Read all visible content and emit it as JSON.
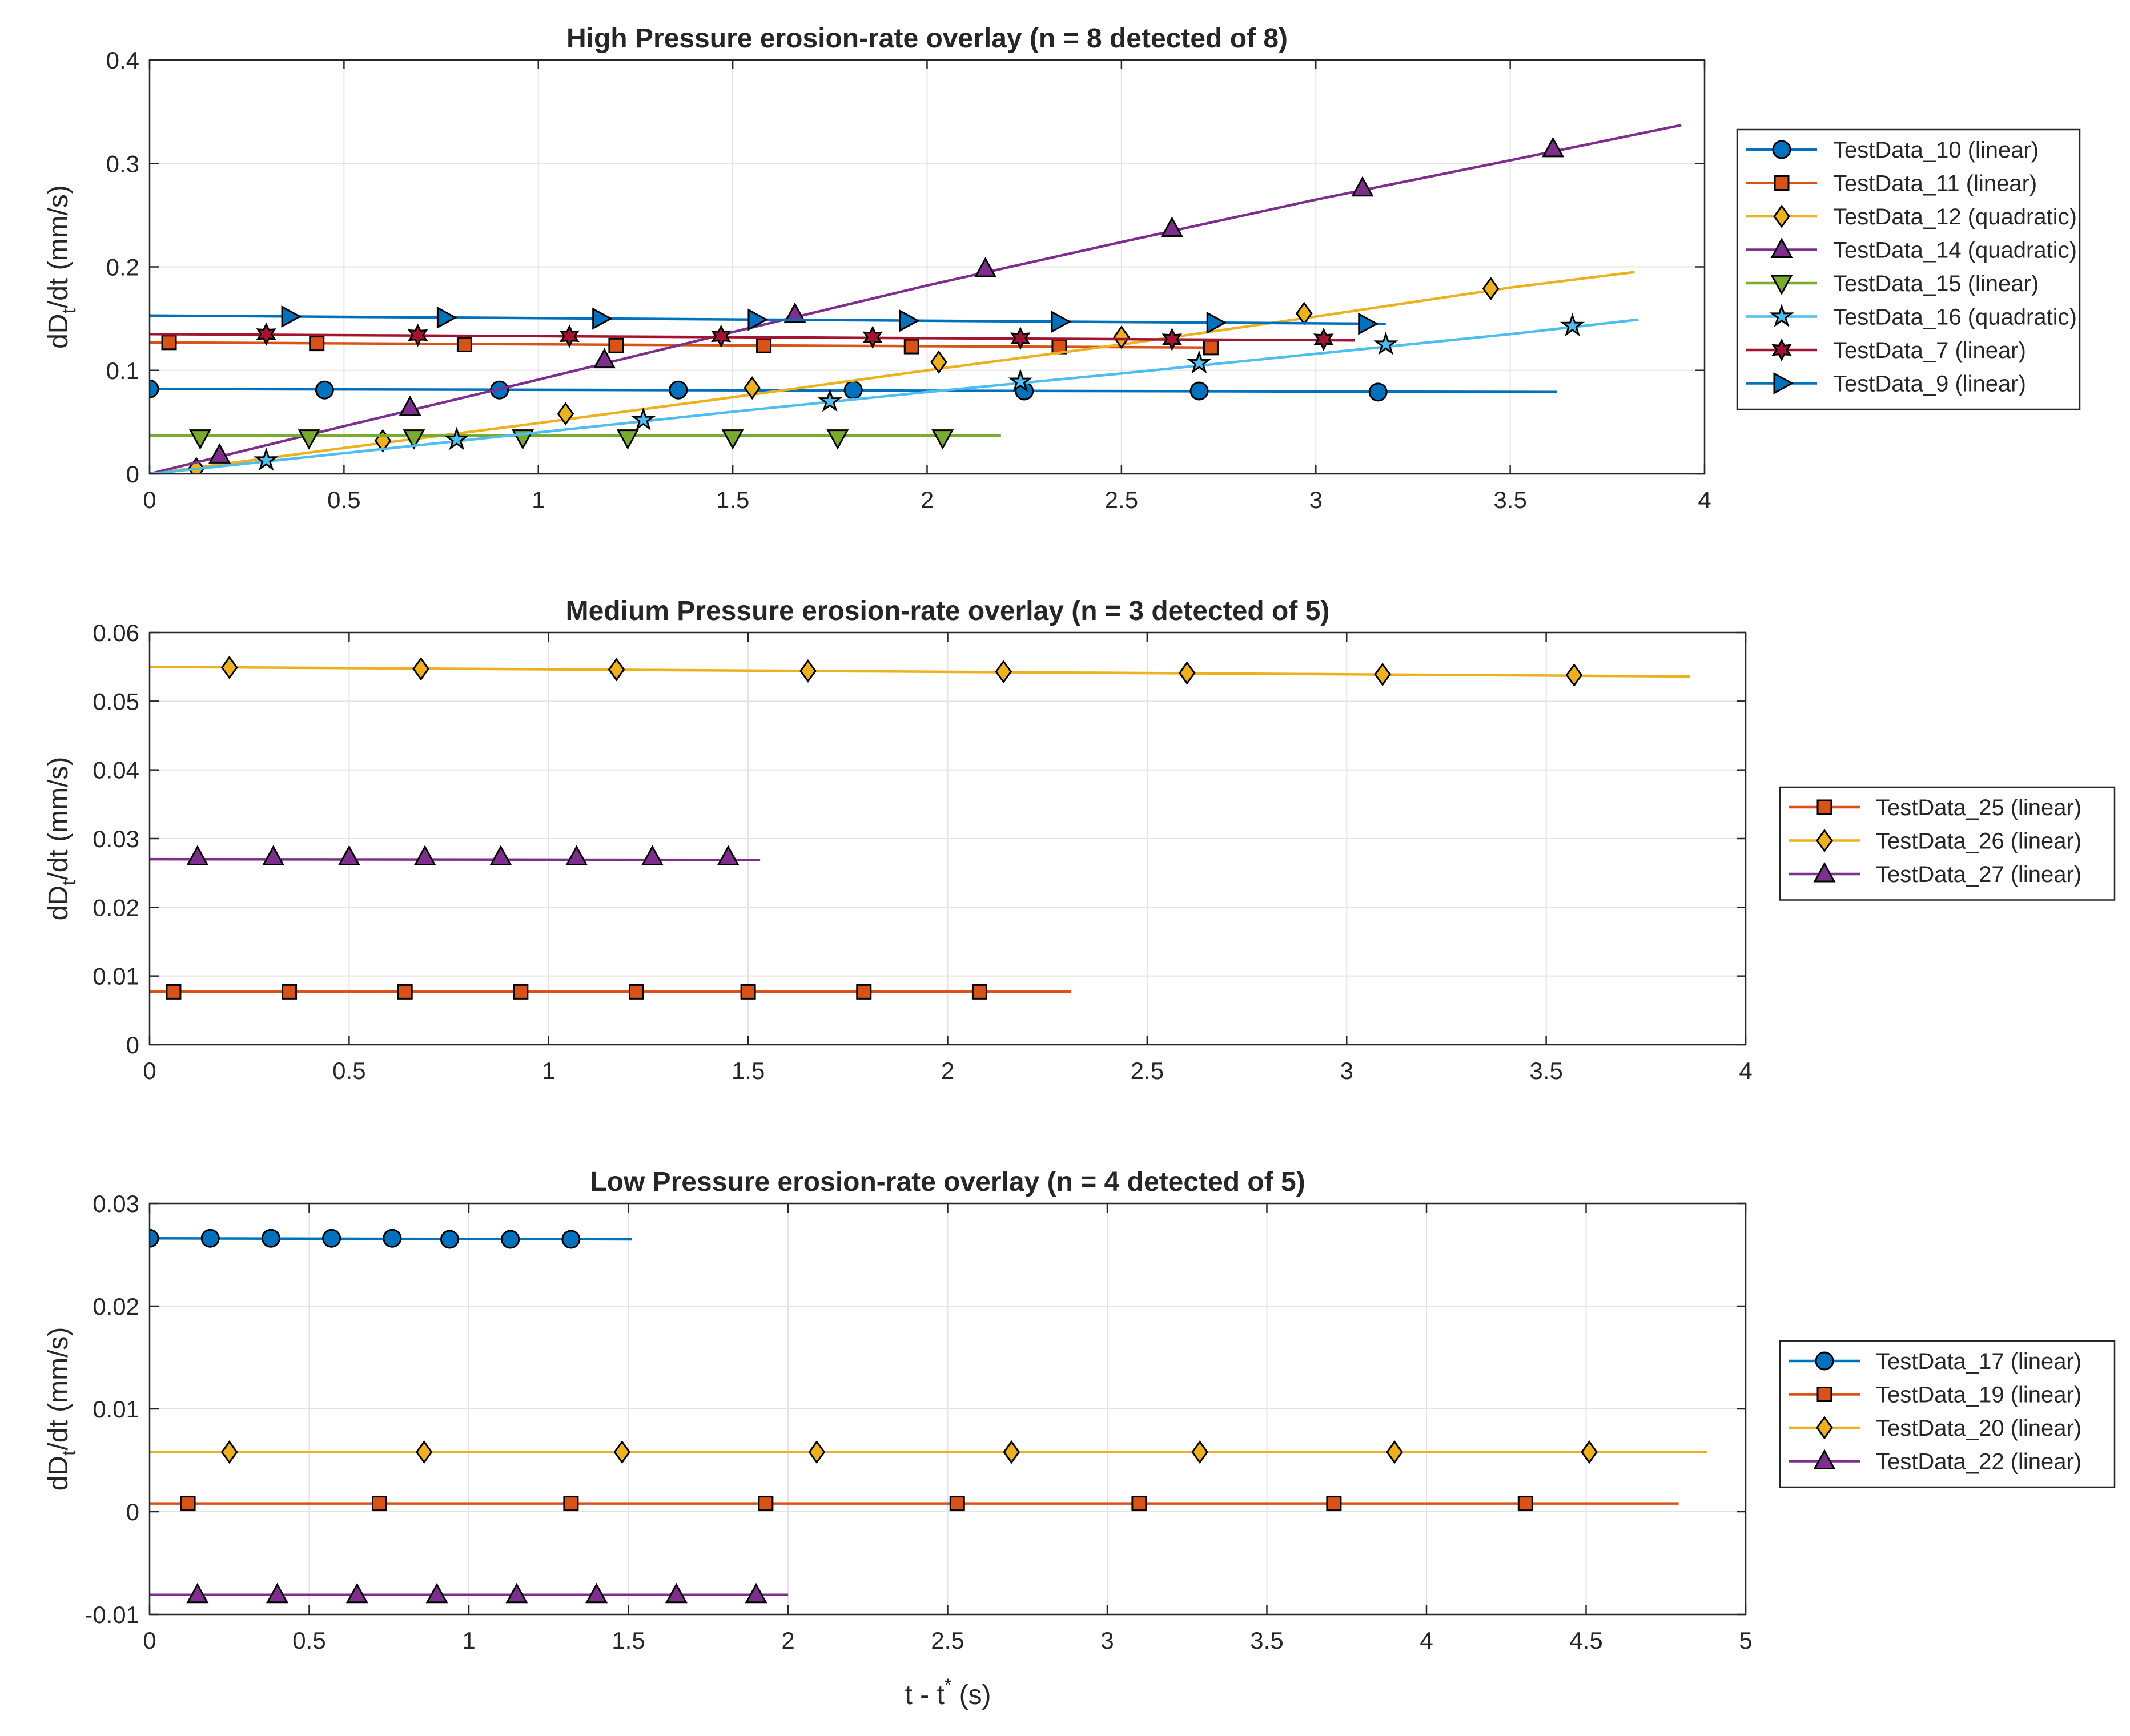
{
  "figure": {
    "xlabel_main": "t - t",
    "xlabel_sup": "*",
    "xlabel_unit": " (s)"
  },
  "chart_data": [
    {
      "type": "line",
      "title": "High Pressure erosion-rate overlay (n = 8 detected of 8)",
      "ylabel_main": "dD",
      "ylabel_sub": "t",
      "ylabel_rest": "/dt (mm/s)",
      "xlim": [
        0,
        4
      ],
      "ylim": [
        0,
        0.4
      ],
      "xticks": [
        0,
        0.5,
        1,
        1.5,
        2,
        2.5,
        3,
        3.5,
        4
      ],
      "xtick_labels": [
        "0",
        "0.5",
        "1",
        "1.5",
        "2",
        "2.5",
        "3",
        "3.5",
        "4"
      ],
      "yticks": [
        0,
        0.1,
        0.2,
        0.3,
        0.4
      ],
      "ytick_labels": [
        "0",
        "0.1",
        "0.2",
        "0.3",
        "0.4"
      ],
      "grid": true,
      "legend_position": "outside-right",
      "series": [
        {
          "name": "TestData_10 (linear)",
          "color": "#0072BD",
          "marker": "circle",
          "line_x": [
            0,
            3.62
          ],
          "line_y": [
            0.082,
            0.079
          ],
          "points": [
            [
              0,
              0.082
            ],
            [
              0.45,
              0.081
            ],
            [
              0.9,
              0.081
            ],
            [
              1.36,
              0.081
            ],
            [
              1.81,
              0.081
            ],
            [
              2.25,
              0.08
            ],
            [
              2.7,
              0.08
            ],
            [
              3.16,
              0.079
            ]
          ]
        },
        {
          "name": "TestData_11 (linear)",
          "color": "#D95319",
          "marker": "square",
          "line_x": [
            0,
            2.75
          ],
          "line_y": [
            0.127,
            0.122
          ],
          "points": [
            [
              0.05,
              0.127
            ],
            [
              0.43,
              0.126
            ],
            [
              0.81,
              0.125
            ],
            [
              1.2,
              0.124
            ],
            [
              1.58,
              0.124
            ],
            [
              1.96,
              0.123
            ],
            [
              2.34,
              0.123
            ],
            [
              2.73,
              0.122
            ]
          ]
        },
        {
          "name": "TestData_12 (quadratic)",
          "color": "#EDB120",
          "marker": "diamond",
          "line_x": [
            0,
            0.5,
            1,
            1.5,
            2,
            2.5,
            3,
            3.5,
            3.82
          ],
          "line_y": [
            0,
            0.025,
            0.049,
            0.074,
            0.1,
            0.125,
            0.152,
            0.18,
            0.195
          ],
          "points": [
            [
              0.12,
              0.005
            ],
            [
              0.6,
              0.032
            ],
            [
              1.07,
              0.058
            ],
            [
              1.55,
              0.083
            ],
            [
              2.03,
              0.108
            ],
            [
              2.5,
              0.132
            ],
            [
              2.97,
              0.155
            ],
            [
              3.45,
              0.179
            ]
          ]
        },
        {
          "name": "TestData_14 (quadratic)",
          "color": "#7E2F8E",
          "marker": "triangle-up",
          "line_x": [
            0,
            0.5,
            1,
            1.5,
            2,
            2.5,
            3,
            3.5,
            3.94
          ],
          "line_y": [
            0,
            0.046,
            0.091,
            0.137,
            0.182,
            0.224,
            0.265,
            0.303,
            0.337
          ],
          "points": [
            [
              0.18,
              0.018
            ],
            [
              0.67,
              0.064
            ],
            [
              1.17,
              0.11
            ],
            [
              1.66,
              0.154
            ],
            [
              2.15,
              0.198
            ],
            [
              2.63,
              0.237
            ],
            [
              3.12,
              0.276
            ],
            [
              3.61,
              0.314
            ]
          ]
        },
        {
          "name": "TestData_15 (linear)",
          "color": "#77AC30",
          "marker": "triangle-down",
          "line_x": [
            0,
            2.19
          ],
          "line_y": [
            0.037,
            0.037
          ],
          "points": [
            [
              0.13,
              0.035
            ],
            [
              0.41,
              0.035
            ],
            [
              0.68,
              0.035
            ],
            [
              0.96,
              0.035
            ],
            [
              1.23,
              0.035
            ],
            [
              1.5,
              0.035
            ],
            [
              1.77,
              0.035
            ],
            [
              2.04,
              0.035
            ]
          ]
        },
        {
          "name": "TestData_16 (quadratic)",
          "color": "#4DBEEE",
          "marker": "star",
          "line_x": [
            0,
            0.5,
            1,
            1.5,
            2,
            2.5,
            3,
            3.5,
            3.83
          ],
          "line_y": [
            0,
            0.02,
            0.04,
            0.06,
            0.079,
            0.097,
            0.116,
            0.135,
            0.149
          ],
          "points": [
            [
              0.3,
              0.013
            ],
            [
              0.79,
              0.033
            ],
            [
              1.27,
              0.052
            ],
            [
              1.75,
              0.07
            ],
            [
              2.24,
              0.089
            ],
            [
              2.7,
              0.107
            ],
            [
              3.18,
              0.125
            ],
            [
              3.66,
              0.143
            ]
          ]
        },
        {
          "name": "TestData_7 (linear)",
          "color": "#A2142F",
          "marker": "hexagram",
          "line_x": [
            0,
            3.1
          ],
          "line_y": [
            0.135,
            0.129
          ],
          "points": [
            [
              0.3,
              0.135
            ],
            [
              0.69,
              0.134
            ],
            [
              1.08,
              0.133
            ],
            [
              1.47,
              0.133
            ],
            [
              1.86,
              0.132
            ],
            [
              2.24,
              0.131
            ],
            [
              2.63,
              0.13
            ],
            [
              3.02,
              0.13
            ]
          ]
        },
        {
          "name": "TestData_9 (linear)",
          "color": "#0072BD",
          "marker": "triangle-right",
          "line_x": [
            0,
            3.18
          ],
          "line_y": [
            0.153,
            0.145
          ],
          "points": [
            [
              0.36,
              0.152
            ],
            [
              0.76,
              0.151
            ],
            [
              1.16,
              0.15
            ],
            [
              1.56,
              0.149
            ],
            [
              1.95,
              0.148
            ],
            [
              2.34,
              0.147
            ],
            [
              2.74,
              0.146
            ],
            [
              3.13,
              0.145
            ]
          ]
        }
      ]
    },
    {
      "type": "line",
      "title": "Medium Pressure erosion-rate overlay (n = 3 detected of 5)",
      "ylabel_main": "dD",
      "ylabel_sub": "t",
      "ylabel_rest": "/dt (mm/s)",
      "xlim": [
        0,
        4
      ],
      "ylim": [
        0,
        0.06
      ],
      "xticks": [
        0,
        0.5,
        1,
        1.5,
        2,
        2.5,
        3,
        3.5,
        4
      ],
      "xtick_labels": [
        "0",
        "0.5",
        "1",
        "1.5",
        "2",
        "2.5",
        "3",
        "3.5",
        "4"
      ],
      "yticks": [
        0,
        0.01,
        0.02,
        0.03,
        0.04,
        0.05,
        0.06
      ],
      "ytick_labels": [
        "0",
        "0.01",
        "0.02",
        "0.03",
        "0.04",
        "0.05",
        "0.06"
      ],
      "grid": true,
      "legend_position": "outside-right",
      "series": [
        {
          "name": "TestData_25 (linear)",
          "color": "#D95319",
          "marker": "square",
          "line_x": [
            0,
            2.31
          ],
          "line_y": [
            0.0077,
            0.0077
          ],
          "points": [
            [
              0.06,
              0.0077
            ],
            [
              0.35,
              0.0077
            ],
            [
              0.64,
              0.0077
            ],
            [
              0.93,
              0.0077
            ],
            [
              1.22,
              0.0077
            ],
            [
              1.5,
              0.0077
            ],
            [
              1.79,
              0.0077
            ],
            [
              2.08,
              0.0077
            ]
          ]
        },
        {
          "name": "TestData_26 (linear)",
          "color": "#EDB120",
          "marker": "diamond",
          "line_x": [
            0,
            3.86
          ],
          "line_y": [
            0.055,
            0.0536
          ],
          "points": [
            [
              0.2,
              0.0549
            ],
            [
              0.68,
              0.0547
            ],
            [
              1.17,
              0.0546
            ],
            [
              1.65,
              0.0544
            ],
            [
              2.14,
              0.0543
            ],
            [
              2.6,
              0.0541
            ],
            [
              3.09,
              0.0539
            ],
            [
              3.57,
              0.0538
            ]
          ]
        },
        {
          "name": "TestData_27 (linear)",
          "color": "#7E2F8E",
          "marker": "triangle-up",
          "line_x": [
            0,
            1.53
          ],
          "line_y": [
            0.027,
            0.0269
          ],
          "points": [
            [
              0.12,
              0.0273
            ],
            [
              0.31,
              0.0273
            ],
            [
              0.5,
              0.0273
            ],
            [
              0.69,
              0.0273
            ],
            [
              0.88,
              0.0273
            ],
            [
              1.07,
              0.0273
            ],
            [
              1.26,
              0.0273
            ],
            [
              1.45,
              0.0273
            ]
          ]
        }
      ]
    },
    {
      "type": "line",
      "title": "Low Pressure erosion-rate overlay (n = 4 detected of 5)",
      "ylabel_main": "dD",
      "ylabel_sub": "t",
      "ylabel_rest": "/dt (mm/s)",
      "xlim": [
        0,
        5
      ],
      "ylim": [
        -0.01,
        0.03
      ],
      "xticks": [
        0,
        0.5,
        1,
        1.5,
        2,
        2.5,
        3,
        3.5,
        4,
        4.5,
        5
      ],
      "xtick_labels": [
        "0",
        "0.5",
        "1",
        "1.5",
        "2",
        "2.5",
        "3",
        "3.5",
        "4",
        "4.5",
        "5"
      ],
      "yticks": [
        -0.01,
        0,
        0.01,
        0.02,
        0.03
      ],
      "ytick_labels": [
        "-0.01",
        "0",
        "0.01",
        "0.02",
        "0.03"
      ],
      "grid": true,
      "legend_position": "outside-right",
      "series": [
        {
          "name": "TestData_17 (linear)",
          "color": "#0072BD",
          "marker": "circle",
          "line_x": [
            0,
            1.51
          ],
          "line_y": [
            0.0266,
            0.0265
          ],
          "points": [
            [
              0,
              0.0266
            ],
            [
              0.19,
              0.0266
            ],
            [
              0.38,
              0.0266
            ],
            [
              0.57,
              0.0266
            ],
            [
              0.76,
              0.0266
            ],
            [
              0.94,
              0.0265
            ],
            [
              1.13,
              0.0265
            ],
            [
              1.32,
              0.0265
            ]
          ]
        },
        {
          "name": "TestData_19 (linear)",
          "color": "#D95319",
          "marker": "square",
          "line_x": [
            0,
            4.79
          ],
          "line_y": [
            0.0008,
            0.0008
          ],
          "points": [
            [
              0.12,
              0.0008
            ],
            [
              0.72,
              0.0008
            ],
            [
              1.32,
              0.0008
            ],
            [
              1.93,
              0.0008
            ],
            [
              2.53,
              0.0008
            ],
            [
              3.1,
              0.0008
            ],
            [
              3.71,
              0.0008
            ],
            [
              4.31,
              0.0008
            ]
          ]
        },
        {
          "name": "TestData_20 (linear)",
          "color": "#EDB120",
          "marker": "diamond",
          "line_x": [
            0,
            4.88
          ],
          "line_y": [
            0.0058,
            0.0058
          ],
          "points": [
            [
              0.25,
              0.0058
            ],
            [
              0.86,
              0.0058
            ],
            [
              1.48,
              0.0058
            ],
            [
              2.09,
              0.0058
            ],
            [
              2.7,
              0.0058
            ],
            [
              3.29,
              0.0058
            ],
            [
              3.9,
              0.0058
            ],
            [
              4.51,
              0.0058
            ]
          ]
        },
        {
          "name": "TestData_22 (linear)",
          "color": "#7E2F8E",
          "marker": "triangle-up",
          "line_x": [
            0,
            2.0
          ],
          "line_y": [
            -0.0081,
            -0.0081
          ],
          "points": [
            [
              0.15,
              -0.0081
            ],
            [
              0.4,
              -0.0081
            ],
            [
              0.65,
              -0.0081
            ],
            [
              0.9,
              -0.0081
            ],
            [
              1.15,
              -0.0081
            ],
            [
              1.4,
              -0.0081
            ],
            [
              1.65,
              -0.0081
            ],
            [
              1.9,
              -0.0081
            ]
          ]
        }
      ]
    }
  ]
}
